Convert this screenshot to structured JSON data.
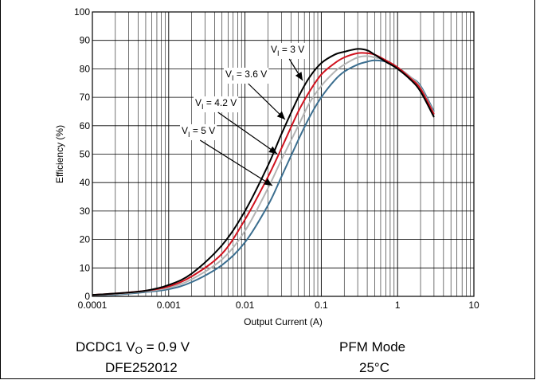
{
  "chart_data": {
    "type": "line",
    "title": "",
    "xlabel": "Output Current (A)",
    "ylabel": "Efficiency (%)",
    "xscale": "log",
    "xlim": [
      0.0001,
      10
    ],
    "ylim": [
      0,
      100
    ],
    "grid": true,
    "x_ticks": [
      "0.0001",
      "0.001",
      "0.01",
      "0.1",
      "1",
      "10"
    ],
    "y_ticks": [
      "0",
      "10",
      "20",
      "30",
      "40",
      "50",
      "60",
      "70",
      "80",
      "90",
      "100"
    ],
    "series": [
      {
        "name": "= 3 V",
        "label_var": "V",
        "label_sub": "I",
        "color": "#000000",
        "x": [
          0.0001,
          0.0002,
          0.0005,
          0.001,
          0.002,
          0.005,
          0.01,
          0.02,
          0.03,
          0.05,
          0.07,
          0.1,
          0.15,
          0.2,
          0.3,
          0.4,
          0.5,
          0.7,
          1,
          1.5,
          2,
          3
        ],
        "y": [
          0.5,
          1,
          2,
          4,
          8,
          18,
          30,
          46,
          57,
          70,
          77,
          82,
          85,
          86,
          87,
          86.5,
          85,
          82.5,
          80,
          76,
          72,
          63
        ]
      },
      {
        "name": "= 3.6 V",
        "label_var": "V",
        "label_sub": "I",
        "color": "#d0121e",
        "x": [
          0.0001,
          0.0002,
          0.0005,
          0.001,
          0.002,
          0.005,
          0.01,
          0.02,
          0.03,
          0.05,
          0.07,
          0.1,
          0.15,
          0.2,
          0.3,
          0.4,
          0.5,
          0.7,
          1,
          1.5,
          2,
          3
        ],
        "y": [
          0.5,
          1,
          2,
          3.5,
          7,
          15,
          27,
          42,
          52,
          65,
          72,
          78,
          82,
          84,
          85.5,
          85.5,
          85,
          83,
          80.5,
          76.5,
          73,
          64
        ]
      },
      {
        "name": "= 4.2 V",
        "label_var": "V",
        "label_sub": "I",
        "color": "#b4b4b4",
        "x": [
          0.0001,
          0.0002,
          0.0005,
          0.001,
          0.002,
          0.005,
          0.01,
          0.02,
          0.03,
          0.05,
          0.07,
          0.1,
          0.15,
          0.2,
          0.3,
          0.4,
          0.5,
          0.7,
          1,
          1.5,
          2,
          3
        ],
        "y": [
          0.4,
          0.8,
          1.8,
          3,
          6,
          13,
          23,
          38,
          48,
          60,
          68,
          74,
          79,
          81.5,
          84,
          84.5,
          84,
          83,
          80.5,
          77,
          73.5,
          64.5
        ]
      },
      {
        "name": "= 5 V",
        "label_var": "V",
        "label_sub": "I",
        "color": "#3b6e8f",
        "x": [
          0.0001,
          0.0002,
          0.0005,
          0.001,
          0.002,
          0.005,
          0.01,
          0.02,
          0.03,
          0.05,
          0.07,
          0.1,
          0.15,
          0.2,
          0.3,
          0.4,
          0.5,
          0.7,
          1,
          1.5,
          2,
          3
        ],
        "y": [
          0.3,
          0.6,
          1.5,
          2.5,
          5,
          11,
          19,
          32,
          42,
          55,
          63,
          70,
          76,
          79,
          81.5,
          82.5,
          83,
          82.5,
          80.5,
          77,
          74,
          65
        ]
      }
    ]
  },
  "captions": {
    "left_line1_prefix": "DCDC1 V",
    "left_line1_sub": "O",
    "left_line1_suffix": " = 0.9 V",
    "left_line2": "DFE252012",
    "right_line1": "PFM Mode",
    "right_line2": "25°C"
  }
}
